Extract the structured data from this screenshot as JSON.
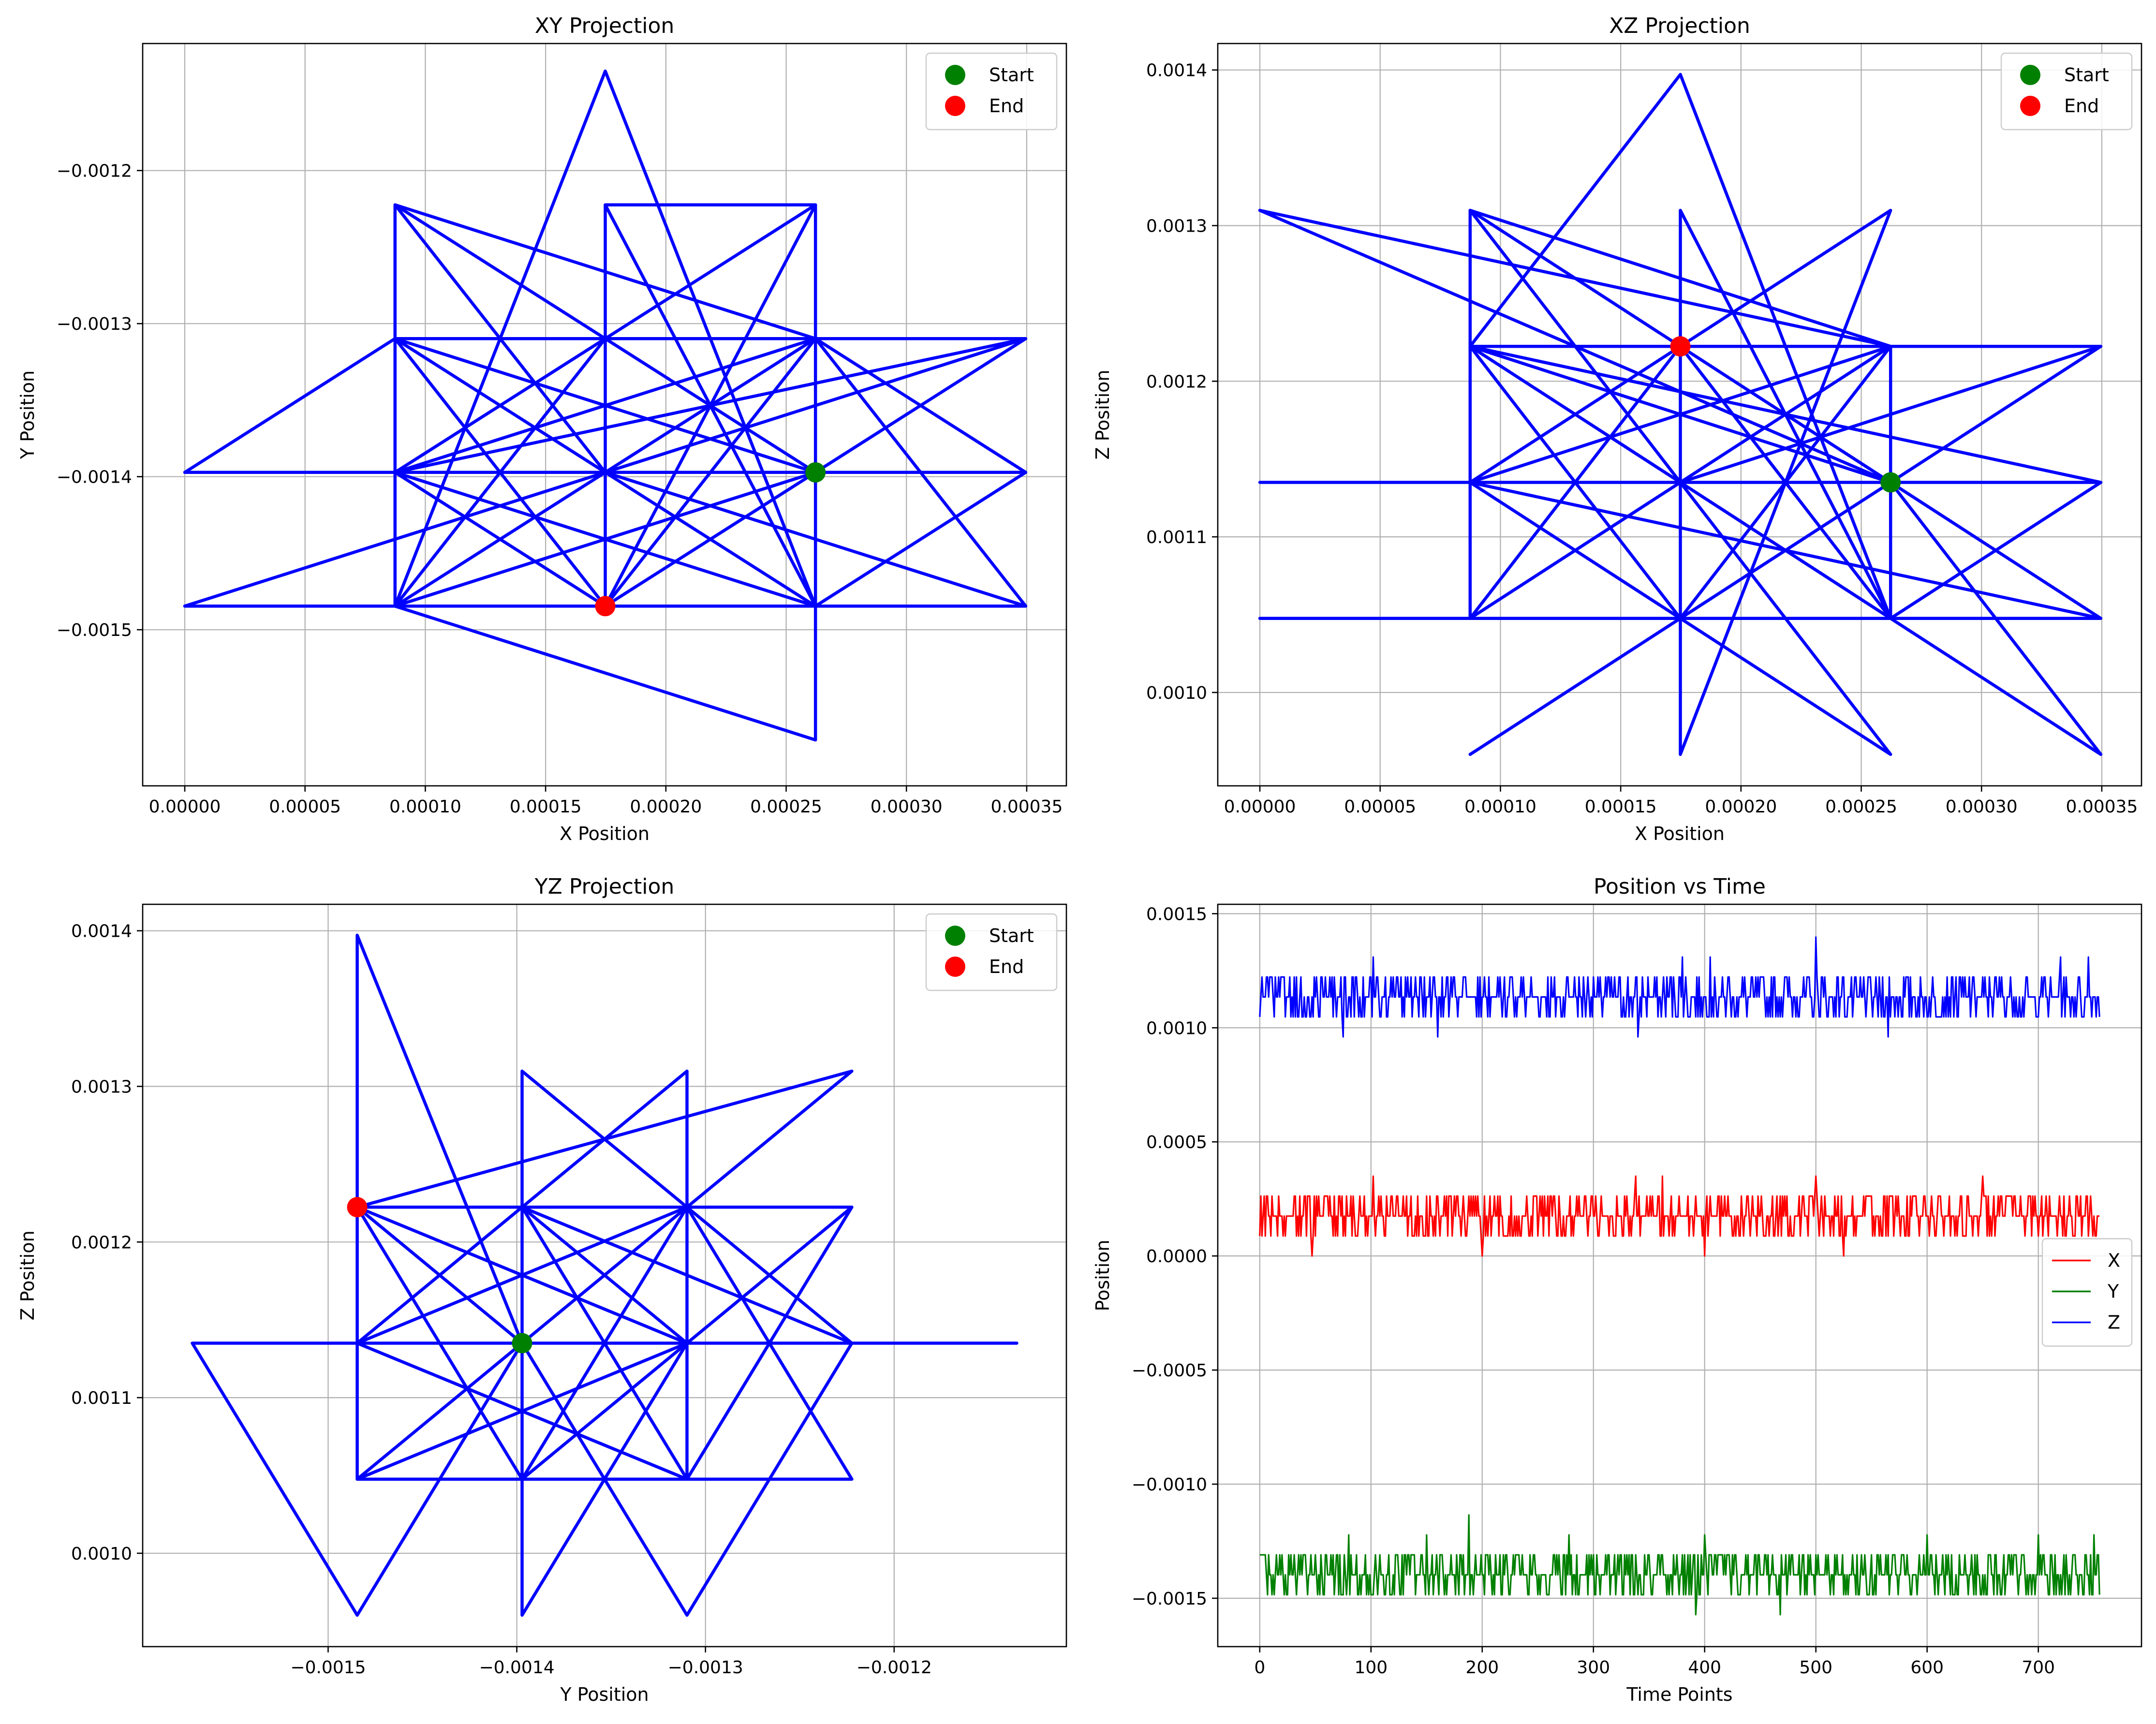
{
  "chart_data": [
    {
      "type": "line",
      "title": "XY Projection",
      "xlabel": "X Position",
      "ylabel": "Y Position",
      "xlim": [
        -1.75e-05,
        0.0003665
      ],
      "ylim": [
        -0.001602,
        -0.001117
      ],
      "xticks": [
        0.0,
        5e-05,
        0.0001,
        0.00015,
        0.0002,
        0.00025,
        0.0003,
        0.00035
      ],
      "xtick_labels": [
        "0.00000",
        "0.00005",
        "0.00010",
        "0.00015",
        "0.00020",
        "0.00025",
        "0.00030",
        "0.00035"
      ],
      "yticks": [
        -0.0012,
        -0.0013,
        -0.0014,
        -0.0015
      ],
      "ytick_labels": [
        "−0.0012",
        "−0.0013",
        "−0.0014",
        "−0.0015"
      ],
      "grid": true,
      "legend": {
        "placement": "top-right",
        "entries": [
          {
            "label": "Start",
            "color": "#008000"
          },
          {
            "label": "End",
            "color": "#ff0000"
          }
        ]
      },
      "line_color": "#0000ff",
      "path": [
        [
          0.0002622,
          -0.0013972
        ],
        [
          0.0001748,
          -0.0013098
        ],
        [
          8.74e-05,
          -0.0014846
        ],
        [
          0.0002622,
          -0.0013098
        ],
        [
          0.0001748,
          -0.0014846
        ],
        [
          8.74e-05,
          -0.0013098
        ],
        [
          0.0002622,
          -0.0014846
        ],
        [
          0.0001748,
          -0.0012224
        ],
        [
          0.0001748,
          -0.0013972
        ],
        [
          8.74e-05,
          -0.0012224
        ],
        [
          0.0002622,
          -0.0013972
        ],
        [
          8.74e-05,
          -0.0013972
        ],
        [
          0.0001748,
          -0.0013098
        ],
        [
          0.0002622,
          -0.0012224
        ],
        [
          0.0001748,
          -0.0014846
        ],
        [
          0.0001748,
          -0.0013098
        ],
        [
          0.0002622,
          -0.0013098
        ],
        [
          8.74e-05,
          -0.0013972
        ],
        [
          0.0002622,
          -0.0014846
        ],
        [
          0.0002622,
          -0.0013098
        ],
        [
          0.0003496,
          -0.0014846
        ],
        [
          8.74e-05,
          -0.0014846
        ],
        [
          8.74e-05,
          -0.0012224
        ],
        [
          0.0002622,
          -0.0013098
        ],
        [
          8.74e-05,
          -0.0013098
        ],
        [
          0.0001748,
          -0.0013972
        ],
        [
          0.0003496,
          -0.0013098
        ],
        [
          0.0001748,
          -0.0014846
        ],
        [
          8.74e-05,
          -0.0013972
        ],
        [
          0.0002622,
          -0.0012224
        ],
        [
          0.0001748,
          -0.0012224
        ],
        [
          0.0002622,
          -0.0014846
        ],
        [
          8.74e-05,
          -0.0013098
        ],
        [
          0.0003496,
          -0.0013098
        ],
        [
          8.74e-05,
          -0.0013972
        ],
        [
          0.0001748,
          -0.0013972
        ],
        [
          8.74e-05,
          -0.0014846
        ],
        [
          0.0002622,
          -0.0013972
        ],
        [
          8.74e-05,
          -0.0013098
        ],
        [
          0.0001748,
          -0.0014846
        ],
        [
          0.0002622,
          -0.0013098
        ],
        [
          0.0003496,
          -0.0013972
        ],
        [
          8.74e-05,
          -0.0013972
        ],
        [
          0.0002622,
          -0.0012224
        ],
        [
          0.0002622,
          -0.001572
        ],
        [
          8.74e-05,
          -0.0014846
        ],
        [
          0.0,
          -0.0014846
        ],
        [
          0.0001748,
          -0.0013972
        ],
        [
          0.0003496,
          -0.0014846
        ],
        [
          0.0002622,
          -0.0014846
        ],
        [
          0.0002622,
          -0.0013972
        ],
        [
          0.0003496,
          -0.0013972
        ],
        [
          0.0002622,
          -0.0014846
        ],
        [
          0.0001748,
          -0.001135
        ],
        [
          8.74e-05,
          -0.0014846
        ],
        [
          8.74e-05,
          -0.0013098
        ],
        [
          0.0003496,
          -0.0013098
        ],
        [
          0.0002622,
          -0.0013972
        ],
        [
          0.0,
          -0.0013972
        ],
        [
          8.74e-05,
          -0.0013098
        ],
        [
          0.0001748,
          -0.0013098
        ],
        [
          0.0001748,
          -0.0014846
        ]
      ],
      "start": {
        "x": 0.0002622,
        "y": -0.0013972
      },
      "end": {
        "x": 0.0001748,
        "y": -0.0014846
      }
    },
    {
      "type": "line",
      "title": "XZ Projection",
      "xlabel": "X Position",
      "ylabel": "Z Position",
      "xlim": [
        -1.75e-05,
        0.0003665
      ],
      "ylim": [
        0.00094,
        0.001417
      ],
      "xticks": [
        0.0,
        5e-05,
        0.0001,
        0.00015,
        0.0002,
        0.00025,
        0.0003,
        0.00035
      ],
      "xtick_labels": [
        "0.00000",
        "0.00005",
        "0.00010",
        "0.00015",
        "0.00020",
        "0.00025",
        "0.00030",
        "0.00035"
      ],
      "yticks": [
        0.001,
        0.0011,
        0.0012,
        0.0013,
        0.0014
      ],
      "ytick_labels": [
        "0.0010",
        "0.0011",
        "0.0012",
        "0.0013",
        "0.0014"
      ],
      "grid": true,
      "legend": {
        "placement": "top-right",
        "entries": [
          {
            "label": "Start",
            "color": "#008000"
          },
          {
            "label": "End",
            "color": "#ff0000"
          }
        ]
      },
      "line_color": "#0000ff",
      "path": [
        [
          0.0002622,
          0.001135
        ],
        [
          0.0001748,
          0.0012224
        ],
        [
          8.74e-05,
          0.0010476
        ],
        [
          0.0002622,
          0.0012224
        ],
        [
          0.0001748,
          0.0010476
        ],
        [
          8.74e-05,
          0.0012224
        ],
        [
          0.0002622,
          0.0010476
        ],
        [
          0.0001748,
          0.0013098
        ],
        [
          0.0001748,
          0.001135
        ],
        [
          8.74e-05,
          0.0013098
        ],
        [
          0.0002622,
          0.001135
        ],
        [
          8.74e-05,
          0.001135
        ],
        [
          0.0001748,
          0.0012224
        ],
        [
          0.0002622,
          0.0013098
        ],
        [
          0.0001748,
          0.0009602
        ],
        [
          0.0001748,
          0.0012224
        ],
        [
          0.0002622,
          0.0012224
        ],
        [
          8.74e-05,
          0.001135
        ],
        [
          0.0003496,
          0.0010476
        ],
        [
          8.74e-05,
          0.0010476
        ],
        [
          8.74e-05,
          0.0013098
        ],
        [
          0.0002622,
          0.0012224
        ],
        [
          8.74e-05,
          0.0012224
        ],
        [
          0.0001748,
          0.001135
        ],
        [
          0.0003496,
          0.0012224
        ],
        [
          0.0001748,
          0.0010476
        ],
        [
          8.74e-05,
          0.001135
        ],
        [
          0.0002622,
          0.0009602
        ],
        [
          0.0001748,
          0.001135
        ],
        [
          0.0003496,
          0.0009602
        ],
        [
          0.0002622,
          0.001135
        ],
        [
          8.74e-05,
          0.0012224
        ],
        [
          0.0001748,
          0.0013971
        ],
        [
          0.0002622,
          0.0010476
        ],
        [
          8.74e-05,
          0.0012224
        ],
        [
          0.0003496,
          0.001135
        ],
        [
          8.74e-05,
          0.001135
        ],
        [
          0.0001748,
          0.001135
        ],
        [
          8.74e-05,
          0.0010476
        ],
        [
          0.0002622,
          0.0012224
        ],
        [
          0.0001748,
          0.0010476
        ],
        [
          8.74e-05,
          0.0009602
        ],
        [
          0.0002622,
          0.001135
        ],
        [
          0.0,
          0.0013098
        ],
        [
          0.0002622,
          0.0012224
        ],
        [
          0.0002622,
          0.0010476
        ],
        [
          0.0,
          0.0010476
        ],
        [
          0.0003496,
          0.0010476
        ],
        [
          0.0002622,
          0.001135
        ],
        [
          0.0003496,
          0.0012224
        ],
        [
          8.74e-05,
          0.0012224
        ],
        [
          0.0001748,
          0.001135
        ],
        [
          0.0,
          0.001135
        ],
        [
          0.0003496,
          0.001135
        ],
        [
          0.0002622,
          0.0010476
        ],
        [
          0.0001748,
          0.0012224
        ]
      ],
      "start": {
        "x": 0.0002622,
        "y": 0.001135
      },
      "end": {
        "x": 0.0001748,
        "y": 0.0012224
      }
    },
    {
      "type": "line",
      "title": "YZ Projection",
      "xlabel": "Y Position",
      "ylabel": "Z Position",
      "xlim": [
        -0.0015983,
        -0.0011087
      ],
      "ylim": [
        0.00094,
        0.001417
      ],
      "xticks": [
        -0.0015,
        -0.0014,
        -0.0013,
        -0.0012
      ],
      "xtick_labels": [
        "−0.0015",
        "−0.0014",
        "−0.0013",
        "−0.0012"
      ],
      "yticks": [
        0.001,
        0.0011,
        0.0012,
        0.0013,
        0.0014
      ],
      "ytick_labels": [
        "0.0010",
        "0.0011",
        "0.0012",
        "0.0013",
        "0.0014"
      ],
      "grid": true,
      "legend": {
        "placement": "top-right",
        "entries": [
          {
            "label": "Start",
            "color": "#008000"
          },
          {
            "label": "End",
            "color": "#ff0000"
          }
        ]
      },
      "line_color": "#0000ff",
      "path": [
        [
          -0.0013972,
          0.001135
        ],
        [
          -0.0013098,
          0.0012224
        ],
        [
          -0.0014846,
          0.0010476
        ],
        [
          -0.0013098,
          0.0012224
        ],
        [
          -0.0014846,
          0.001135
        ],
        [
          -0.0013098,
          0.0010476
        ],
        [
          -0.0012224,
          0.0012224
        ],
        [
          -0.0014846,
          0.0012224
        ],
        [
          -0.0013972,
          0.001135
        ],
        [
          -0.0013098,
          0.001135
        ],
        [
          -0.0014846,
          0.0012224
        ],
        [
          -0.0013972,
          0.0010476
        ],
        [
          -0.0013098,
          0.0012224
        ],
        [
          -0.0013972,
          0.0013098
        ],
        [
          -0.0013972,
          0.0009602
        ],
        [
          -0.0013098,
          0.001135
        ],
        [
          -0.0014846,
          0.0010476
        ],
        [
          -0.0012224,
          0.0010476
        ],
        [
          -0.0013098,
          0.0012224
        ],
        [
          -0.0014846,
          0.001135
        ],
        [
          -0.0013972,
          0.0012224
        ],
        [
          -0.0013098,
          0.0010476
        ],
        [
          -0.0013098,
          0.0013098
        ],
        [
          -0.0014846,
          0.001135
        ],
        [
          -0.0013098,
          0.001135
        ],
        [
          -0.0013972,
          0.0012224
        ],
        [
          -0.0012224,
          0.001135
        ],
        [
          -0.0013098,
          0.0009602
        ],
        [
          -0.0013972,
          0.001135
        ],
        [
          -0.0014846,
          0.0013971
        ],
        [
          -0.0014846,
          0.0010476
        ],
        [
          -0.0013098,
          0.001135
        ],
        [
          -0.001572,
          0.001135
        ],
        [
          -0.0014846,
          0.0009602
        ],
        [
          -0.0013972,
          0.001135
        ],
        [
          -0.0012224,
          0.0013098
        ],
        [
          -0.0014846,
          0.0012224
        ],
        [
          -0.0013098,
          0.0012224
        ],
        [
          -0.0012224,
          0.001135
        ],
        [
          -0.001135,
          0.001135
        ],
        [
          -0.0013972,
          0.001135
        ],
        [
          -0.0013972,
          0.0010476
        ],
        [
          -0.0013098,
          0.001135
        ],
        [
          -0.0012224,
          0.0012224
        ],
        [
          -0.0014846,
          0.0012224
        ]
      ],
      "start": {
        "x": -0.0013972,
        "y": 0.001135
      },
      "end": {
        "x": -0.0014846,
        "y": 0.0012224
      }
    },
    {
      "type": "line",
      "title": "Position vs Time",
      "xlabel": "Time Points",
      "ylabel": "Position",
      "xlim": [
        -37.75,
        792.75
      ],
      "ylim": [
        -0.001712,
        0.001541
      ],
      "xticks": [
        0,
        100,
        200,
        300,
        400,
        500,
        600,
        700
      ],
      "xtick_labels": [
        "0",
        "100",
        "200",
        "300",
        "400",
        "500",
        "600",
        "700"
      ],
      "yticks": [
        0.0015,
        0.001,
        0.0005,
        0.0,
        -0.0005,
        -0.001,
        -0.0015
      ],
      "ytick_labels": [
        "0.0015",
        "0.0010",
        "0.0005",
        "0.0000",
        "−0.0005",
        "−0.0010",
        "−0.0015"
      ],
      "grid": true,
      "legend": {
        "placement": "center-right",
        "entries": [
          {
            "label": "X",
            "color": "#ff0000"
          },
          {
            "label": "Y",
            "color": "#008000"
          },
          {
            "label": "Z",
            "color": "#0000ff"
          }
        ]
      },
      "x_range": [
        0,
        755
      ],
      "series": [
        {
          "name": "X",
          "color": "#ff0000",
          "levels": [
            8.74e-05,
            0.0001748,
            0.0002622
          ],
          "weights": [
            0.25,
            0.45,
            0.3
          ],
          "spikes": [
            [
              47,
              0.0
            ],
            [
              102,
              0.0003496
            ],
            [
              200,
              0.0
            ],
            [
              338,
              0.0003496
            ],
            [
              362,
              0.0003496
            ],
            [
              400,
              0.0
            ],
            [
              500,
              0.0003496
            ],
            [
              525,
              0.0
            ],
            [
              650,
              0.0003496
            ]
          ]
        },
        {
          "name": "Y",
          "color": "#008000",
          "levels": [
            -0.0014846,
            -0.0013972,
            -0.0013098
          ],
          "weights": [
            0.25,
            0.45,
            0.3
          ],
          "spikes": [
            [
              80,
              -0.0012224
            ],
            [
              150,
              -0.0012224
            ],
            [
              188,
              -0.001135
            ],
            [
              278,
              -0.0012224
            ],
            [
              392,
              -0.001572
            ],
            [
              400,
              -0.0012224
            ],
            [
              468,
              -0.001572
            ],
            [
              600,
              -0.0012224
            ],
            [
              700,
              -0.0012224
            ],
            [
              750,
              -0.0012224
            ]
          ]
        },
        {
          "name": "Z",
          "color": "#0000ff",
          "levels": [
            0.0010476,
            0.001135,
            0.0012224
          ],
          "weights": [
            0.25,
            0.5,
            0.25
          ],
          "spikes": [
            [
              75,
              0.0009602
            ],
            [
              102,
              0.0013098
            ],
            [
              160,
              0.0009602
            ],
            [
              340,
              0.0009602
            ],
            [
              380,
              0.0013098
            ],
            [
              405,
              0.0013098
            ],
            [
              500,
              0.0013971
            ],
            [
              565,
              0.0009602
            ],
            [
              720,
              0.0013098
            ],
            [
              745,
              0.0013098
            ]
          ]
        }
      ]
    }
  ]
}
